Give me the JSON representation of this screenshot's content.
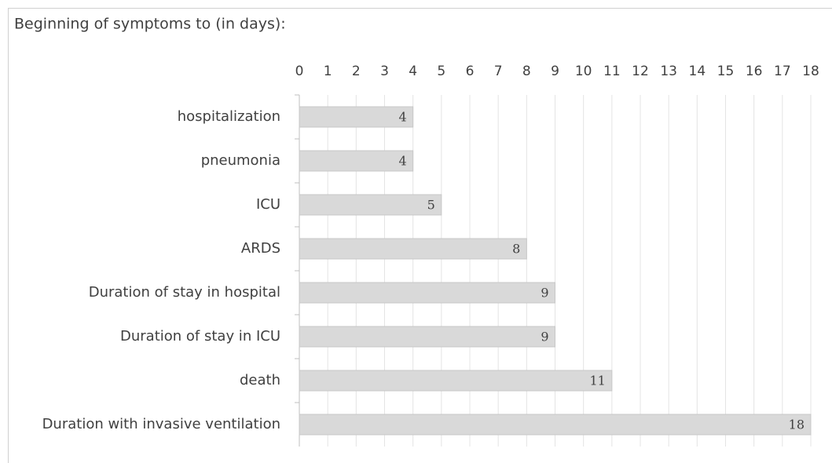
{
  "chart_data": {
    "type": "bar",
    "orientation": "horizontal",
    "title": "Beginning of symptoms to (in days):",
    "categories": [
      "hospitalization",
      "pneumonia",
      "ICU",
      "ARDS",
      "Duration of stay in hospital",
      "Duration of stay in ICU",
      "death",
      "Duration with invasive ventilation"
    ],
    "values": [
      4,
      4,
      5,
      8,
      9,
      9,
      11,
      18
    ],
    "color": "#d9d9d9",
    "xlim": [
      0,
      18
    ],
    "xticks": [
      0,
      1,
      2,
      3,
      4,
      5,
      6,
      7,
      8,
      9,
      10,
      11,
      12,
      13,
      14,
      15,
      16,
      17,
      18
    ],
    "grid": true
  }
}
